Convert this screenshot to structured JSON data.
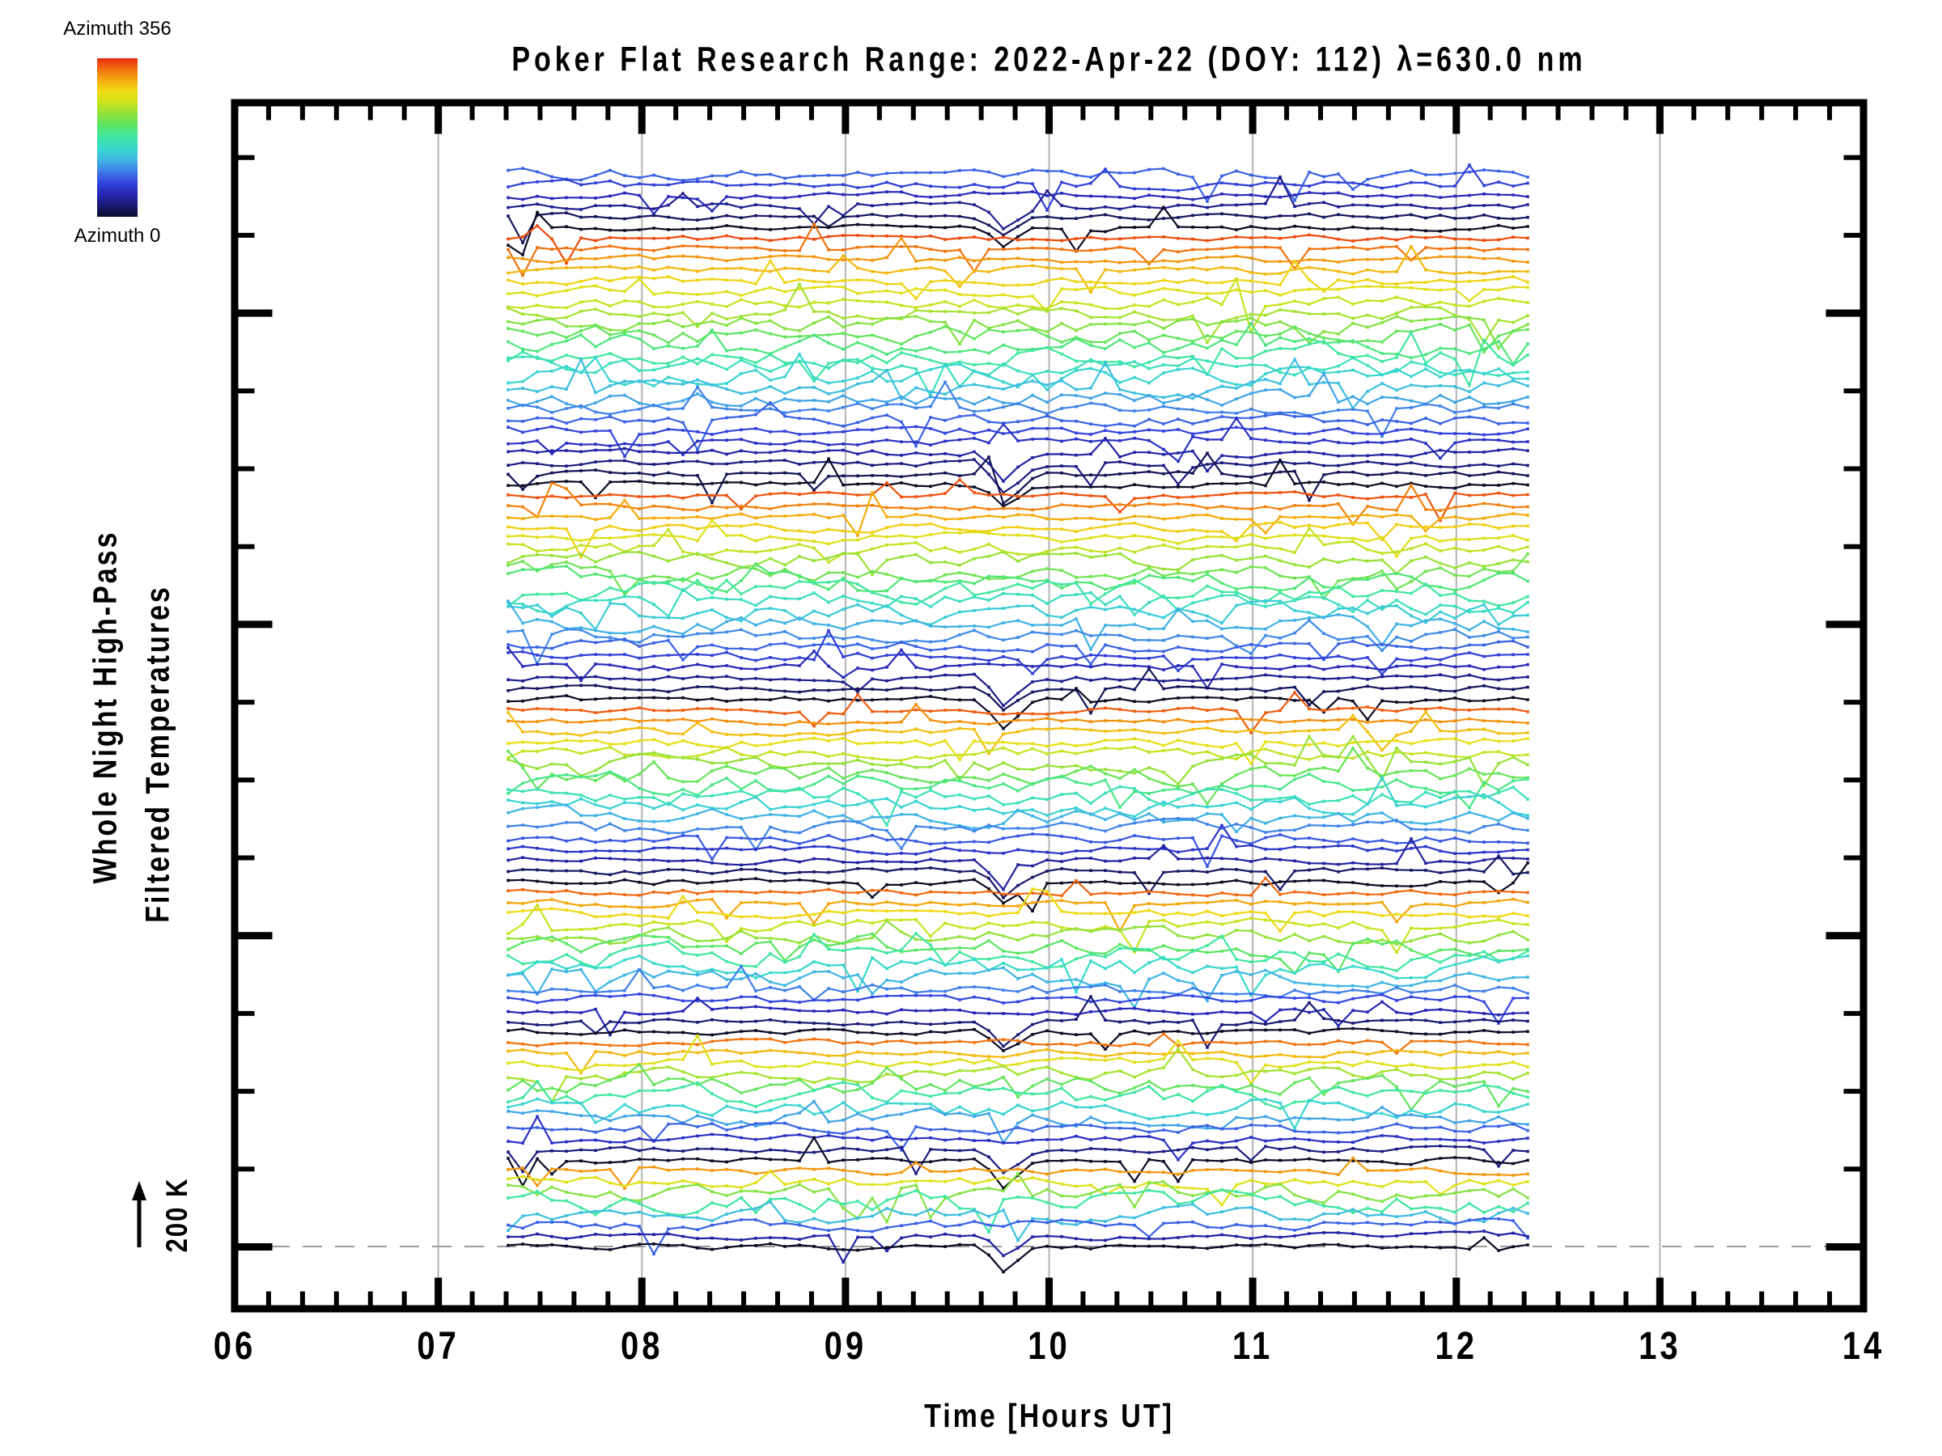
{
  "title": "Poker Flat Research Range: 2022-Apr-22 (DOY: 112) λ=630.0 nm",
  "axes": {
    "x_label": "Time [Hours UT]",
    "x_tick_labels": [
      "06",
      "07",
      "08",
      "09",
      "10",
      "11",
      "12",
      "13",
      "14"
    ],
    "y_label_line1": "Whole Night High-Pass",
    "y_label_line2": "Filtered Temperatures"
  },
  "colorbar": {
    "top_label": "Azimuth 356",
    "bottom_label": "Azimuth 0"
  },
  "scale_bar": {
    "label": "200 K"
  },
  "chart_data": {
    "type": "line",
    "title": "Poker Flat Research Range: 2022-Apr-22 (DOY: 112) λ=630.0 nm",
    "xlabel": "Time [Hours UT]",
    "ylabel": [
      "Whole Night High-Pass",
      "Filtered Temperatures"
    ],
    "x_range_hours_ut": [
      6,
      14
    ],
    "x_major_tick_hours": [
      6,
      7,
      8,
      9,
      10,
      11,
      12,
      13,
      14
    ],
    "x_minor_tick_interval_minutes": 10,
    "gridline_hours": [
      7,
      8,
      9,
      10,
      11,
      12,
      13
    ],
    "grid_on": true,
    "legend_position": "colorbar top-left, Azimuth 0 to 356 rainbow",
    "data_time_span_hours_ut": [
      7.34,
      12.35
    ],
    "vertical_scale_bar_K": 200,
    "baseline_dashed_gray_line": "zero level of bottom azimuth-0 trace",
    "trace_stack": {
      "description": "101 vertically offset high-pass filtered temperature time series (one per sky viewing zone), stacked top-to-bottom in rings; line color encodes zone azimuth via rainbow colormap (0 deg = dark navy, 356 deg = red). Bottom trace is azimuth 0.",
      "n_traces_total": 101,
      "waveform": "stochastic high-pass residuals, typical excursions 20-60 K, occasional 100 K spikes; coordinated dip near 9.8 UT in low-azimuth (dark) traces",
      "noise_seed": 20220422,
      "rings_top_to_bottom": [
        {
          "zones_plotted": 6,
          "azimuths_deg": [
            90,
            72,
            54,
            36,
            18,
            0
          ]
        },
        {
          "zones_plotted": 24,
          "azimuths_deg": [
            345,
            330,
            315,
            300,
            285,
            270,
            255,
            240,
            225,
            210,
            195,
            180,
            165,
            150,
            135,
            120,
            105,
            90,
            75,
            60,
            45,
            30,
            15,
            0
          ]
        },
        {
          "zones_plotted": 20,
          "azimuths_deg": [
            342,
            324,
            306,
            288,
            270,
            252,
            234,
            216,
            198,
            180,
            162,
            144,
            126,
            108,
            90,
            72,
            54,
            36,
            18,
            0
          ]
        },
        {
          "zones_plotted": 17,
          "azimuths_deg": [
            338.8,
            317.6,
            296.5,
            275.3,
            254.1,
            232.9,
            211.8,
            190.6,
            169.4,
            148.2,
            127.1,
            105.9,
            84.7,
            63.5,
            42.4,
            21.2,
            0
          ]
        },
        {
          "zones_plotted": 14,
          "azimuths_deg": [
            334.3,
            308.6,
            282.9,
            257.1,
            231.4,
            205.7,
            180,
            154.3,
            128.6,
            102.9,
            77.1,
            51.4,
            25.7,
            0
          ]
        },
        {
          "zones_plotted": 12,
          "azimuths_deg": [
            330,
            300,
            270,
            240,
            210,
            180,
            150,
            120,
            90,
            60,
            30,
            0
          ]
        },
        {
          "zones_plotted": 8,
          "azimuths_deg": [
            315,
            270,
            225,
            180,
            135,
            90,
            45,
            0
          ]
        }
      ]
    },
    "colormap_azimuth_0_to_356": [
      "#0b0b26",
      "#1a1a74",
      "#2626b4",
      "#3344dd",
      "#3f7ce8",
      "#3fb4e4",
      "#38d8cf",
      "#3ee6a6",
      "#55e567",
      "#8ce23c",
      "#c6e21f",
      "#eede14",
      "#f4ae0c",
      "#f0720f",
      "#e92d0e"
    ],
    "azimuth_color_range_deg": [
      0,
      356
    ],
    "grid_color": "#b3b3b3",
    "dashed_line_color": "#9b9b9b",
    "axis_color": "#000000"
  }
}
